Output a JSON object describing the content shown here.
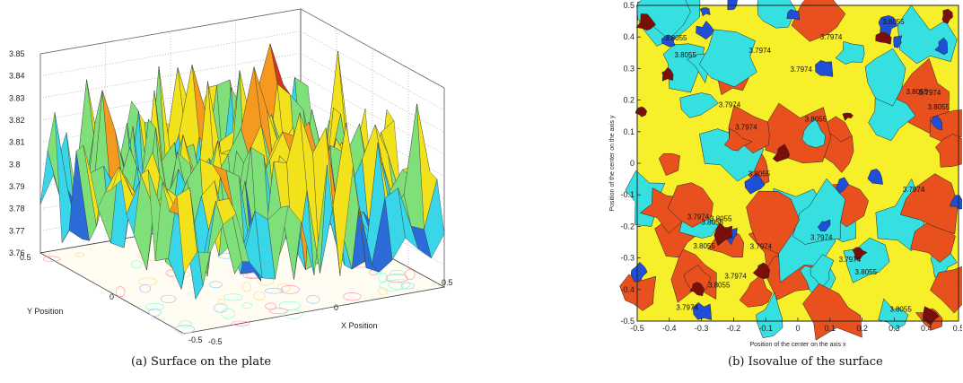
{
  "captions": {
    "a": "(a)  Surface on the plate",
    "b": "(b)  Isovalue of the surface"
  },
  "chart_data": [
    {
      "type": "surface3d",
      "title": "",
      "xlabel": "X Position",
      "ylabel": "Y Position",
      "zlabel": "",
      "xlim": [
        -0.5,
        0.5
      ],
      "ylim": [
        -0.5,
        0.5
      ],
      "zlim": [
        3.76,
        3.85
      ],
      "x_ticks": [
        "-0.5",
        "0",
        "0.5"
      ],
      "y_ticks": [
        "0.5",
        "0",
        "-0.5"
      ],
      "z_ticks": [
        "3.85",
        "3.84",
        "3.83",
        "3.82",
        "3.81",
        "3.8",
        "3.79",
        "3.78",
        "3.77",
        "3.76"
      ],
      "grid": true,
      "colors": [
        "#2b6cd8",
        "#38d6e8",
        "#7fe07a",
        "#f2e21c",
        "#f59a1e",
        "#d9341a"
      ]
    },
    {
      "type": "contour",
      "title": "",
      "xlabel": "Position of the center on the axis x",
      "ylabel": "Position of the center on the axis y",
      "xlim": [
        -0.5,
        0.5
      ],
      "ylim": [
        -0.5,
        0.5
      ],
      "x_ticks": [
        "-0.5",
        "-0.4",
        "-0.3",
        "-0.2",
        "-0.1",
        "0",
        "0.1",
        "0.2",
        "0.3",
        "0.4",
        "0.5"
      ],
      "y_ticks": [
        "0.5",
        "0.4",
        "0.3",
        "0.2",
        "0.1",
        "0",
        "-0.1",
        "-0.2",
        "-0.3",
        "-0.4",
        "-0.5"
      ],
      "levels": [
        "3.7974",
        "3.8055"
      ],
      "level_colors": [
        "#1f4fd6",
        "#36e0e0",
        "#f7ef2a",
        "#e8501e",
        "#7a0f0a"
      ]
    }
  ]
}
